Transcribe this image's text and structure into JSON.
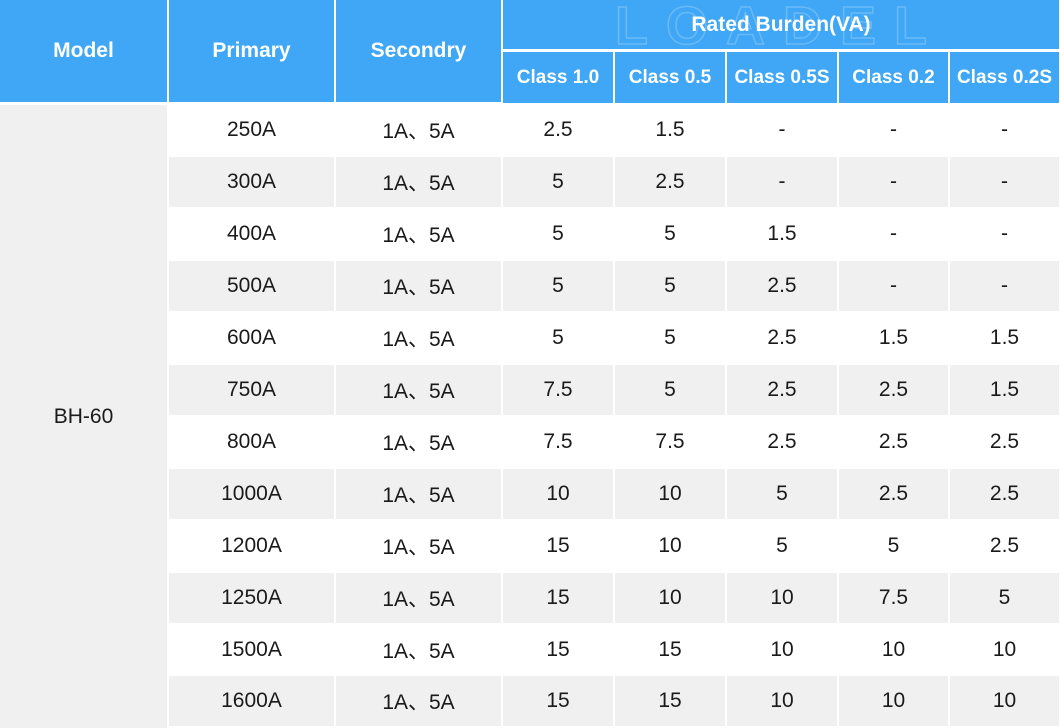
{
  "header": {
    "model": "Model",
    "primary": "Primary",
    "secondary": "Secondry",
    "rated_burden": "Rated Burden(VA)",
    "classes": [
      "Class 1.0",
      "Class 0.5",
      "Class 0.5S",
      "Class 0.2",
      "Class 0.2S"
    ]
  },
  "watermark": "LOADEL",
  "model_value": "BH-60",
  "rows": [
    {
      "primary": "250A",
      "secondary": "1A、5A",
      "values": [
        "2.5",
        "1.5",
        "-",
        "-",
        "-"
      ]
    },
    {
      "primary": "300A",
      "secondary": "1A、5A",
      "values": [
        "5",
        "2.5",
        "-",
        "-",
        "-"
      ]
    },
    {
      "primary": "400A",
      "secondary": "1A、5A",
      "values": [
        "5",
        "5",
        "1.5",
        "-",
        "-"
      ]
    },
    {
      "primary": "500A",
      "secondary": "1A、5A",
      "values": [
        "5",
        "5",
        "2.5",
        "-",
        "-"
      ]
    },
    {
      "primary": "600A",
      "secondary": "1A、5A",
      "values": [
        "5",
        "5",
        "2.5",
        "1.5",
        "1.5"
      ]
    },
    {
      "primary": "750A",
      "secondary": "1A、5A",
      "values": [
        "7.5",
        "5",
        "2.5",
        "2.5",
        "1.5"
      ]
    },
    {
      "primary": "800A",
      "secondary": "1A、5A",
      "values": [
        "7.5",
        "7.5",
        "2.5",
        "2.5",
        "2.5"
      ]
    },
    {
      "primary": "1000A",
      "secondary": "1A、5A",
      "values": [
        "10",
        "10",
        "5",
        "2.5",
        "2.5"
      ]
    },
    {
      "primary": "1200A",
      "secondary": "1A、5A",
      "values": [
        "15",
        "10",
        "5",
        "5",
        "2.5"
      ]
    },
    {
      "primary": "1250A",
      "secondary": "1A、5A",
      "values": [
        "15",
        "10",
        "10",
        "7.5",
        "5"
      ]
    },
    {
      "primary": "1500A",
      "secondary": "1A、5A",
      "values": [
        "15",
        "15",
        "10",
        "10",
        "10"
      ]
    },
    {
      "primary": "1600A",
      "secondary": "1A、5A",
      "values": [
        "15",
        "15",
        "10",
        "10",
        "10"
      ]
    }
  ]
}
